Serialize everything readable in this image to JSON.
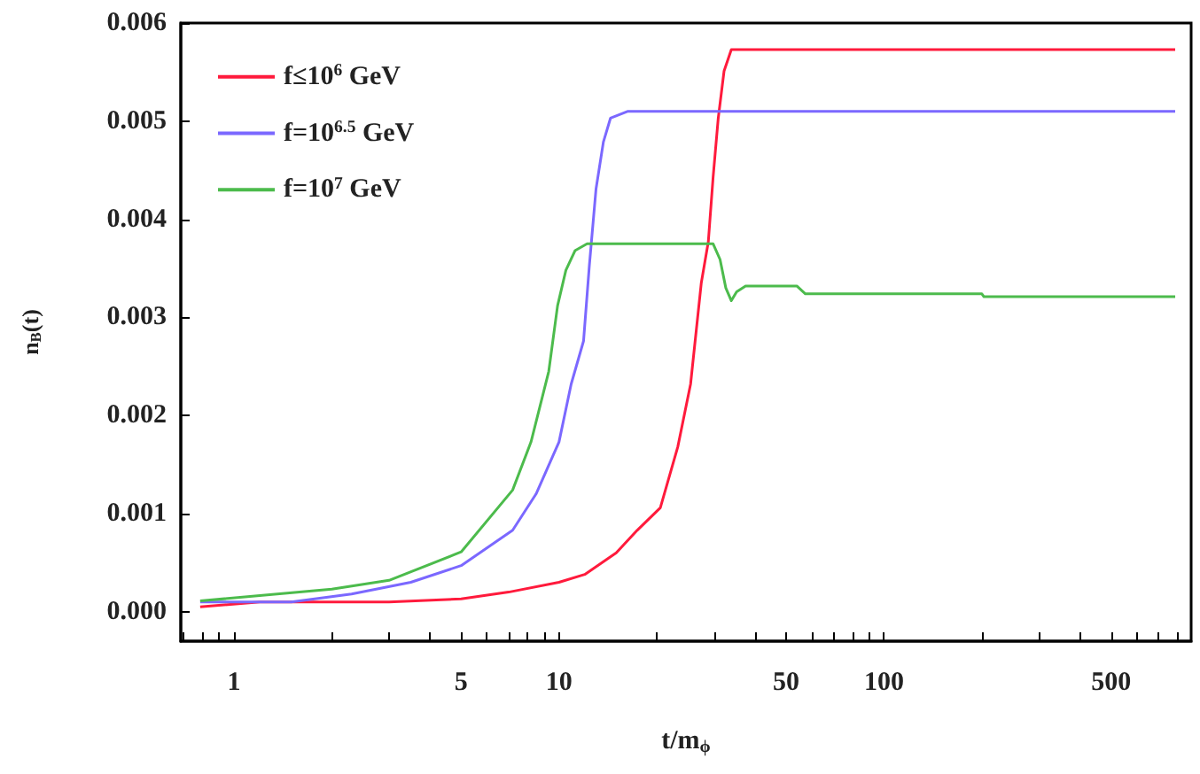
{
  "chart_data": {
    "type": "line",
    "xlabel": "t/m$_{ϕ}$",
    "ylabel": "n$_{B}$(t)",
    "log": "x",
    "grid": false,
    "legend": "top left",
    "marker": "none",
    "line_style": "solid",
    "xlim": [
      0.686,
      881
    ],
    "ylim": [
      -0.0003,
      0.006
    ],
    "xticks": [
      {
        "value": 0.7,
        "label": null
      },
      {
        "value": 0.8,
        "label": null
      },
      {
        "value": 0.9,
        "label": null
      },
      1,
      {
        "value": 2,
        "label": null
      },
      {
        "value": 3,
        "label": null
      },
      {
        "value": 4,
        "label": null
      },
      5,
      {
        "value": 6,
        "label": null
      },
      {
        "value": 7,
        "label": null
      },
      {
        "value": 8,
        "label": null
      },
      {
        "value": 9,
        "label": null
      },
      10,
      {
        "value": 20,
        "label": null
      },
      {
        "value": 30,
        "label": null
      },
      {
        "value": 40,
        "label": null
      },
      50,
      {
        "value": 60,
        "label": null
      },
      {
        "value": 70,
        "label": null
      },
      {
        "value": 80,
        "label": null
      },
      {
        "value": 90,
        "label": null
      },
      100,
      {
        "value": 200,
        "label": null
      },
      {
        "value": 300,
        "label": null
      },
      {
        "value": 400,
        "label": null
      },
      500,
      {
        "value": 600,
        "label": null
      },
      {
        "value": 700,
        "label": null
      },
      {
        "value": 800,
        "label": null
      }
    ],
    "yticks": [
      {
        "value": 0,
        "label": "0.000"
      },
      {
        "value": 0.001,
        "label": "0.001"
      },
      {
        "value": 0.002,
        "label": "0.002"
      },
      {
        "value": 0.003,
        "label": "0.003"
      },
      {
        "value": 0.004,
        "label": "0.004"
      },
      {
        "value": 0.005,
        "label": "0.005"
      },
      {
        "value": 0.006,
        "label": "0.006"
      }
    ],
    "series": [
      {
        "name": "f≤10$^{6}$ GeV",
        "color": "#ff1a3c",
        "x": [
          0.787,
          1.2,
          2,
          3,
          5,
          7,
          10,
          12,
          15,
          17.4,
          20.5,
          23.2,
          25.4,
          27.4,
          28.8,
          29.8,
          30.9,
          32.2,
          33.9,
          100,
          787
        ],
        "values": [
          5e-05,
          0.0001,
          0.0001,
          0.0001,
          0.00013,
          0.0002,
          0.0003,
          0.00038,
          0.0006,
          0.00083,
          0.00106,
          0.00168,
          0.00232,
          0.00335,
          0.00377,
          0.00443,
          0.00503,
          0.00551,
          0.00573,
          0.00573,
          0.00573
        ]
      },
      {
        "name": "f=10$^{6.5}$ GeV",
        "color": "#7b68ff",
        "x": [
          0.787,
          1.5,
          2.3,
          3.5,
          5,
          7.2,
          8.5,
          10,
          10.9,
          11.9,
          12.4,
          13,
          13.7,
          14.4,
          16.3,
          100,
          787
        ],
        "values": [
          0.0001,
          0.0001,
          0.00018,
          0.0003,
          0.00047,
          0.00083,
          0.0012,
          0.00173,
          0.00232,
          0.00276,
          0.00353,
          0.00431,
          0.00479,
          0.00503,
          0.0051,
          0.0051,
          0.0051
        ]
      },
      {
        "name": "f=10$^{7}$ GeV",
        "color": "#4cbb4c",
        "x": [
          0.787,
          2,
          3,
          5,
          7.2,
          8.2,
          9.3,
          9.9,
          10.5,
          11.2,
          12.2,
          29.8,
          31.3,
          32.6,
          33.9,
          35.2,
          37.5,
          53.9,
          57.3,
          200,
          203,
          787
        ],
        "values": [
          0.00011,
          0.00023,
          0.00032,
          0.00061,
          0.00124,
          0.00173,
          0.00245,
          0.00312,
          0.00348,
          0.00368,
          0.00375,
          0.00375,
          0.00359,
          0.0033,
          0.00317,
          0.00326,
          0.00332,
          0.00332,
          0.00324,
          0.00324,
          0.00321,
          0.00321
        ]
      }
    ]
  }
}
